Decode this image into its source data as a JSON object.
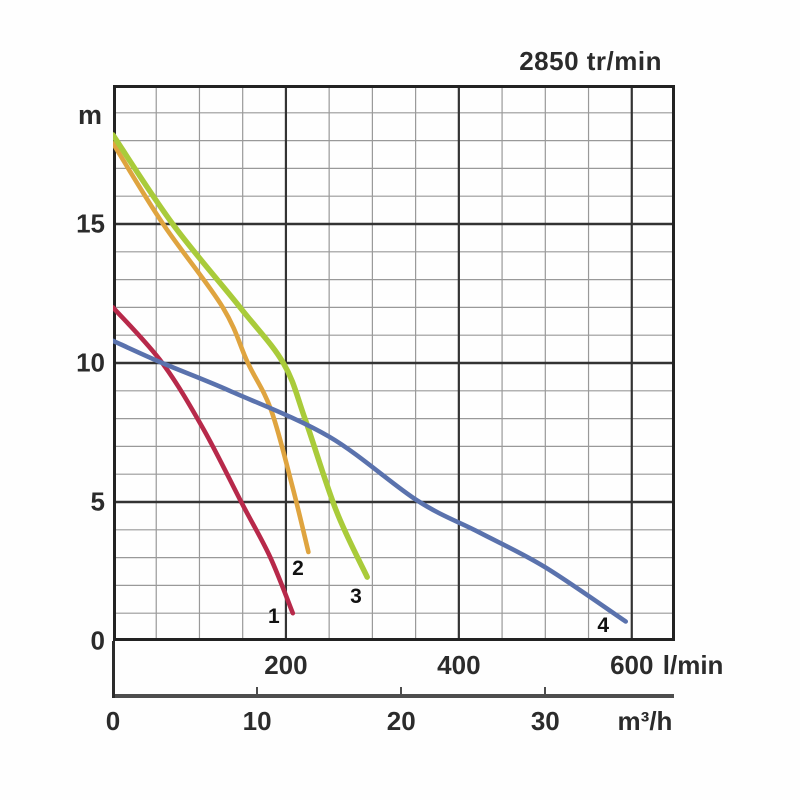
{
  "title": "2850 tr/min",
  "colors": {
    "grid_minor": "#999999",
    "grid_major": "#333333",
    "plot_border": "#222222",
    "secondary_axis": "#4d4d4d",
    "text": "#2b2b2b",
    "curve_1": "#b7294a",
    "curve_2": "#dfa43f",
    "curve_3": "#a9cb3a",
    "curve_4": "#5a72ad"
  },
  "chart_data": {
    "type": "line",
    "title": "2850 tr/min",
    "grid": "on",
    "legend": "none, curves numbered at their lower endpoints",
    "y_axis": {
      "unit": "m",
      "min": 0,
      "max": 20,
      "major_ticks": [
        0,
        5,
        10,
        15
      ],
      "minor_step": 1
    },
    "x_axis": {
      "unit": "l/min",
      "min": 0,
      "max": 650,
      "major_ticks": [
        200,
        400,
        600
      ],
      "minor_step": 50
    },
    "x_axis_secondary": {
      "unit": "m³/h",
      "ticks": [
        0,
        10,
        20,
        30
      ],
      "lmin_per_unit": 16.6667
    },
    "series": [
      {
        "name": "curve-1",
        "color_key": "curve_1",
        "points": [
          [
            0,
            12
          ],
          [
            57,
            10
          ],
          [
            105,
            7.6
          ],
          [
            150,
            4.9
          ],
          [
            182,
            3.0
          ],
          [
            208,
            1.0
          ]
        ],
        "label": {
          "text": "1",
          "q": 186,
          "h": 0.85
        }
      },
      {
        "name": "curve-2",
        "color_key": "curve_2",
        "points": [
          [
            0,
            17.9
          ],
          [
            58,
            15
          ],
          [
            127,
            12
          ],
          [
            156,
            10
          ],
          [
            183,
            8.3
          ],
          [
            208,
            5.5
          ],
          [
            226,
            3.2
          ]
        ],
        "label": {
          "text": "2",
          "q": 214,
          "h": 2.6
        }
      },
      {
        "name": "curve-3",
        "color_key": "curve_3",
        "points": [
          [
            0,
            18.2
          ],
          [
            69,
            15
          ],
          [
            147,
            12
          ],
          [
            197,
            10
          ],
          [
            222,
            8.0
          ],
          [
            258,
            4.7
          ],
          [
            294,
            2.3
          ]
        ],
        "label": {
          "text": "3",
          "q": 281,
          "h": 1.6
        }
      },
      {
        "name": "curve-4",
        "color_key": "curve_4",
        "points": [
          [
            0,
            10.8
          ],
          [
            57,
            10
          ],
          [
            135,
            9.0
          ],
          [
            250,
            7.35
          ],
          [
            352,
            5.05
          ],
          [
            424,
            3.9
          ],
          [
            500,
            2.65
          ],
          [
            593,
            0.7
          ]
        ],
        "label": {
          "text": "4",
          "q": 567,
          "h": 0.55
        }
      }
    ]
  },
  "layout_note_visible_text_only": "m, 15, 10, 5, 0, 200, 400, 600 l/min, 0, 10, 20, 30, m³/h, 2850 tr/min, 1, 2, 3, 4"
}
